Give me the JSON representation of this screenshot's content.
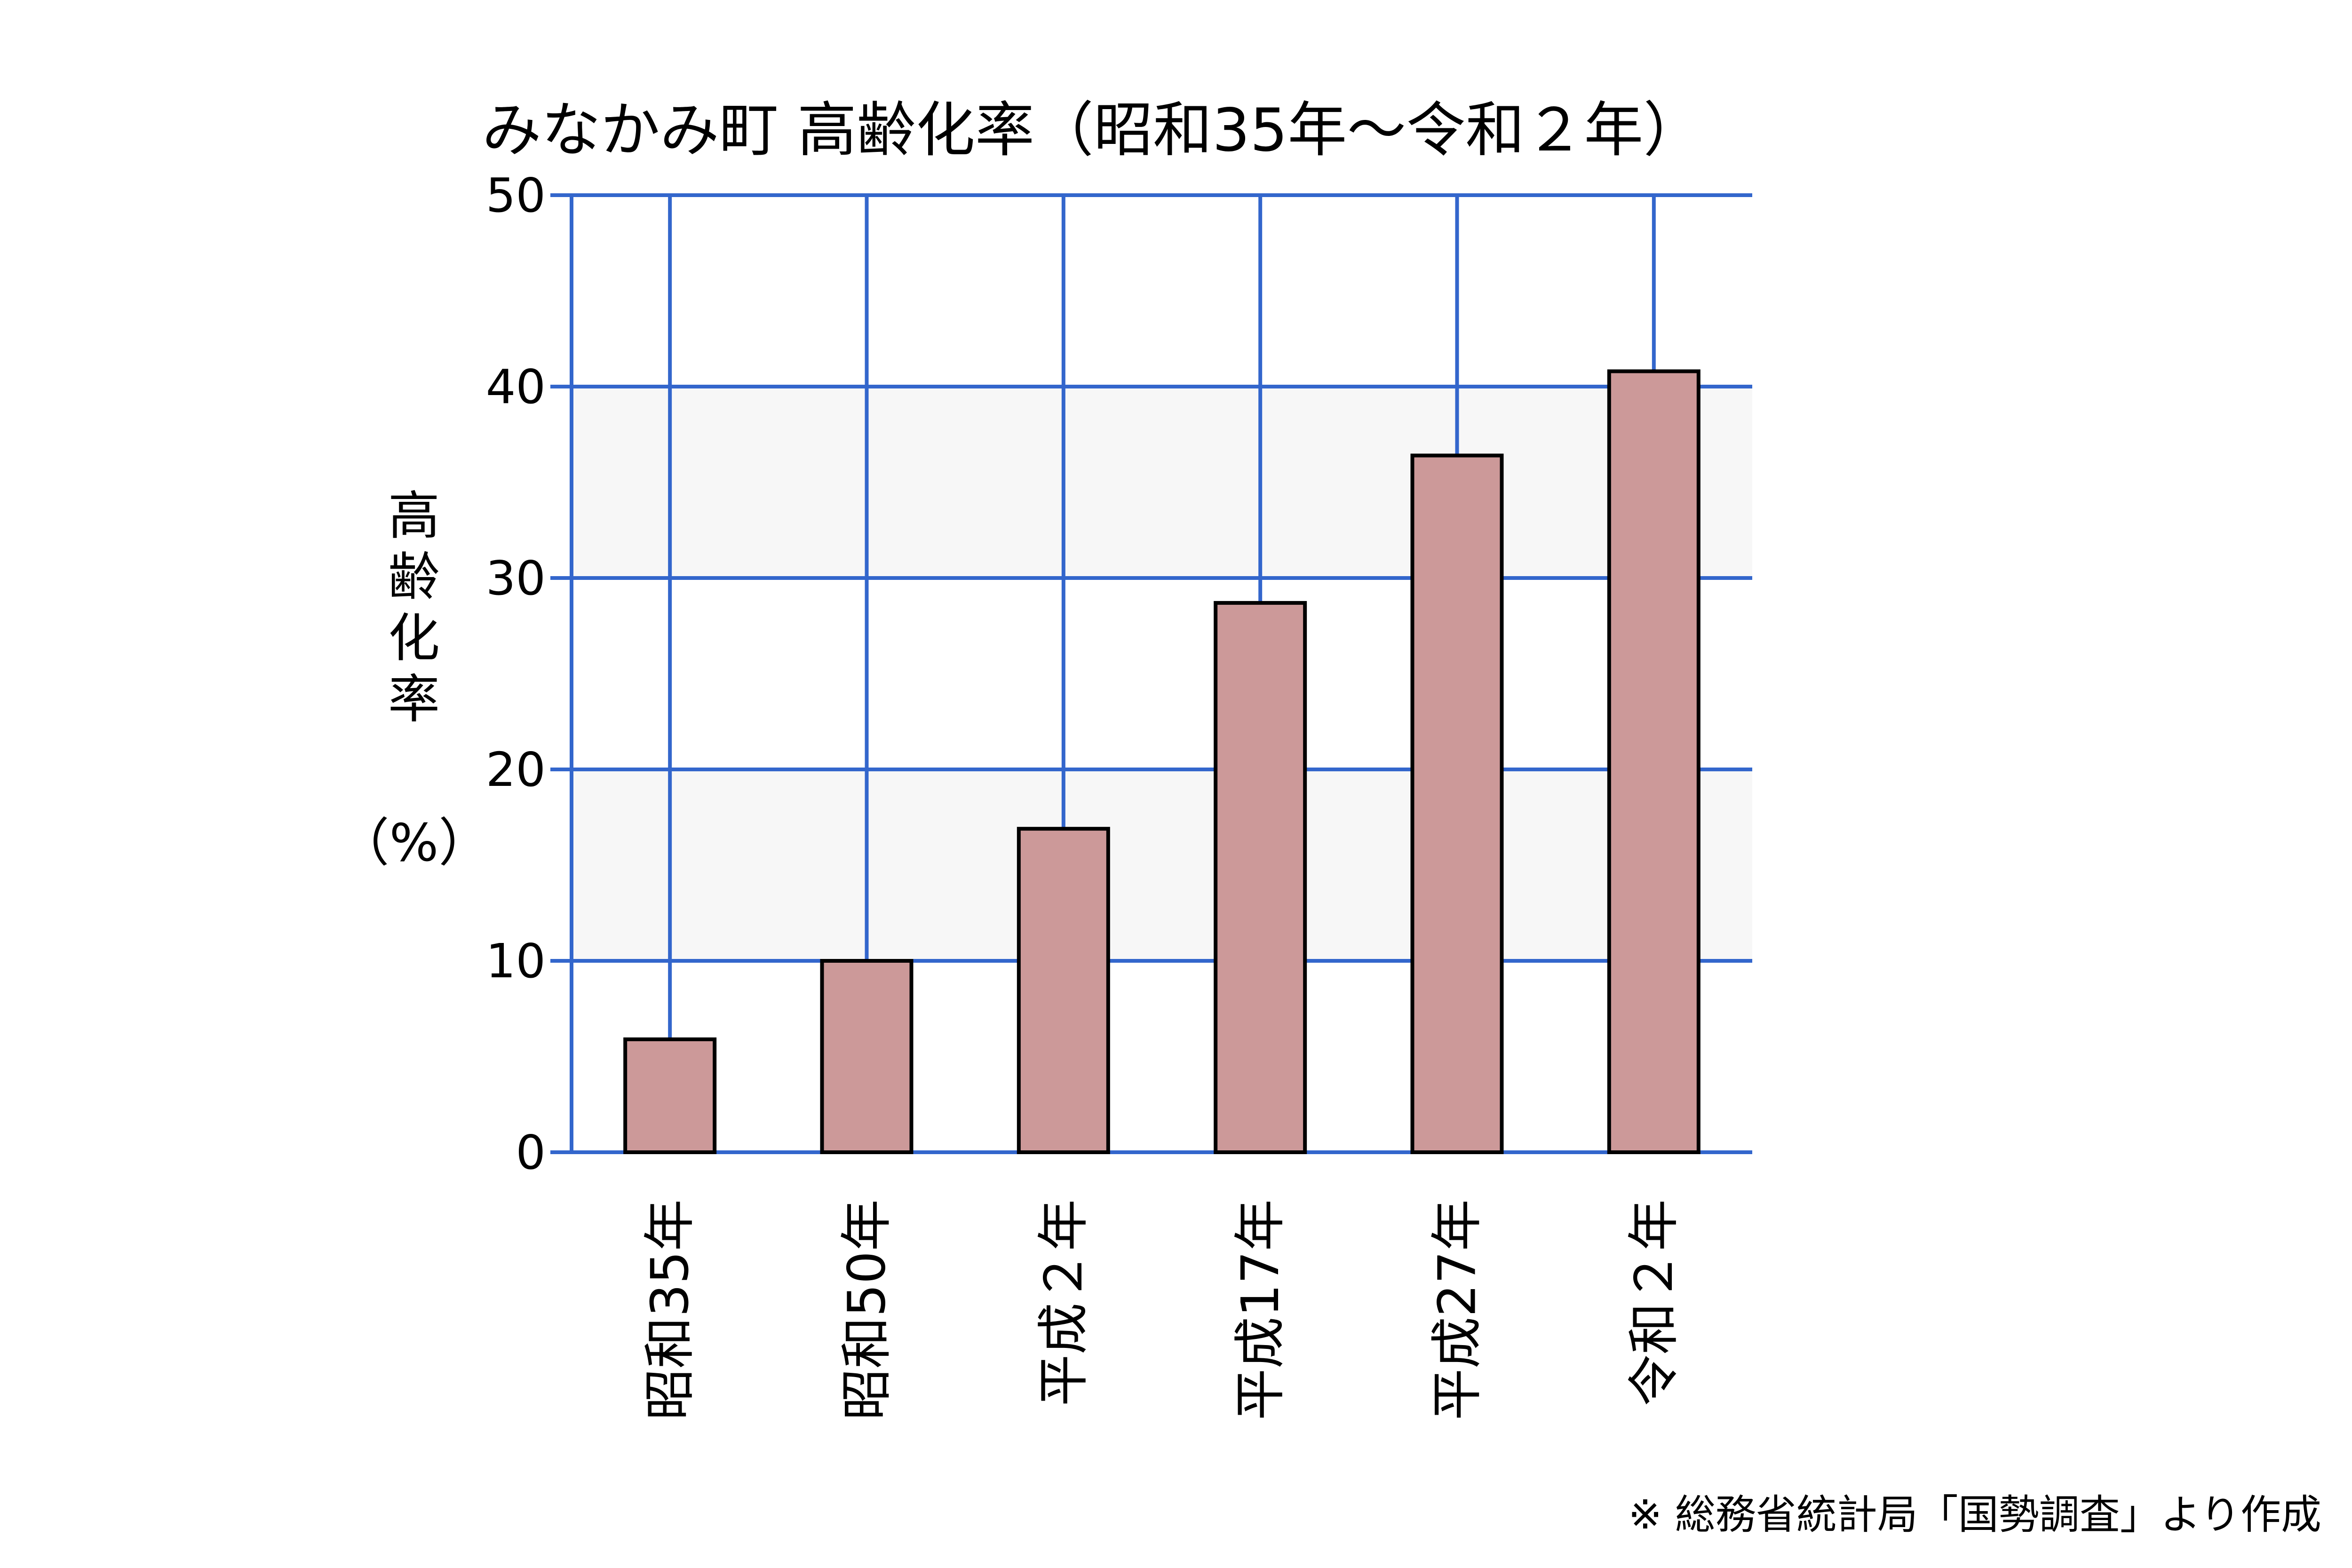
{
  "chart_data": {
    "type": "bar",
    "title": "みなかみ町 高齢化率（昭和35年～令和２年）",
    "ylabel_chars": [
      "高",
      "齢",
      "化",
      "率"
    ],
    "ylabel_unit": "（%）",
    "categories": [
      "昭和35年",
      "昭和50年",
      "平成２年",
      "平成17年",
      "平成27年",
      "令和２年"
    ],
    "values": [
      5.9,
      10.0,
      16.9,
      28.7,
      36.4,
      40.8
    ],
    "ylim": [
      0,
      50
    ],
    "yticks": [
      "0",
      "10",
      "20",
      "30",
      "40",
      "50"
    ],
    "grid": true,
    "bar_color": "#cc9999",
    "grid_color": "#3366cc",
    "band_color": "#f7f7f7",
    "source": "※ 総務省統計局「国勢調査」より作成"
  }
}
